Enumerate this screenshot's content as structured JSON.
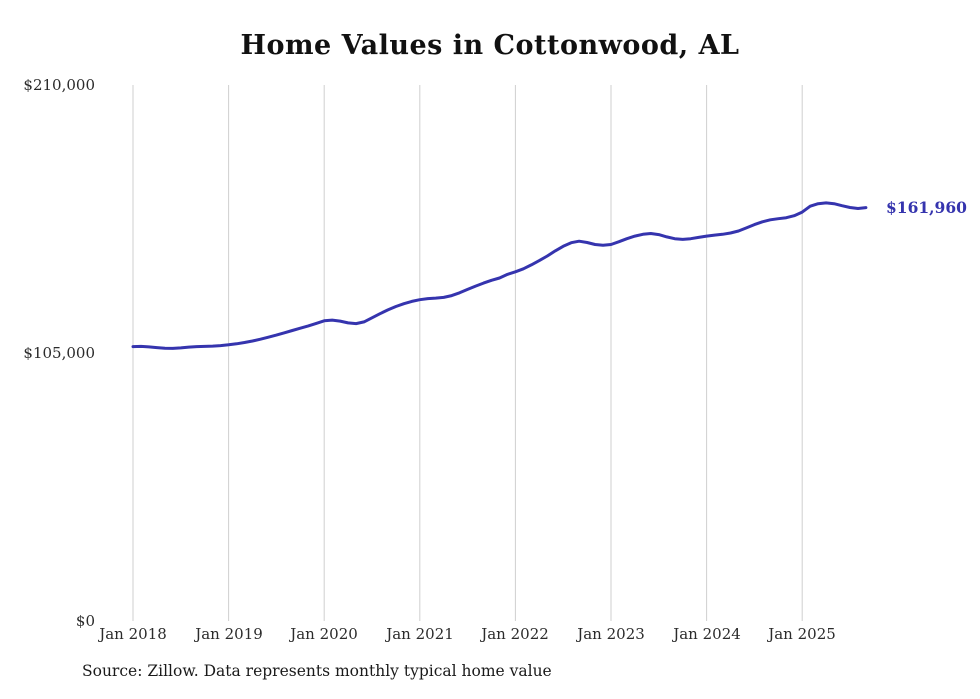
{
  "title": "Home Values in Cottonwood, AL",
  "source_note": "Source: Zillow. Data represents monthly typical home value",
  "end_label": "$161,960",
  "colors": {
    "line": "#3534ae",
    "end_label": "#3534ae",
    "grid": "#cfcfcf",
    "title": "#111111",
    "axis_text": "#2b2b2b"
  },
  "y_axis": {
    "labels": [
      "$210,000",
      "$105,000",
      "$0"
    ],
    "values": [
      210000,
      105000,
      0
    ]
  },
  "x_axis": {
    "labels": [
      "Jan 2018",
      "Jan 2019",
      "Jan 2020",
      "Jan 2021",
      "Jan 2022",
      "Jan 2023",
      "Jan 2024",
      "Jan 2025"
    ]
  },
  "chart_data": {
    "type": "line",
    "title": "Home Values in Cottonwood, AL",
    "xlabel": "",
    "ylabel": "",
    "ylim": [
      0,
      210000
    ],
    "y_tick_labels": [
      "$0",
      "$105,000",
      "$210,000"
    ],
    "x_tick_labels": [
      "Jan 2018",
      "Jan 2019",
      "Jan 2020",
      "Jan 2021",
      "Jan 2022",
      "Jan 2023",
      "Jan 2024",
      "Jan 2025"
    ],
    "x_range": {
      "start": "2018-01",
      "end": "2025-09",
      "interval": "monthly"
    },
    "grid": "vertical-only",
    "legend": "none",
    "end_value_label": "$161,960",
    "series": [
      {
        "name": "Typical home value",
        "values": [
          107500,
          107600,
          107400,
          107100,
          106900,
          106800,
          107000,
          107300,
          107500,
          107600,
          107700,
          107900,
          108200,
          108600,
          109100,
          109700,
          110400,
          111200,
          112000,
          112900,
          113800,
          114700,
          115600,
          116600,
          117600,
          117900,
          117500,
          116800,
          116500,
          117200,
          118800,
          120400,
          121900,
          123200,
          124300,
          125200,
          125900,
          126300,
          126500,
          126800,
          127500,
          128600,
          129900,
          131200,
          132400,
          133500,
          134400,
          135800,
          136800,
          138000,
          139500,
          141200,
          143000,
          145000,
          146800,
          148200,
          148800,
          148300,
          147500,
          147200,
          147500,
          148600,
          149800,
          150800,
          151500,
          151800,
          151400,
          150500,
          149800,
          149500,
          149800,
          150300,
          150800,
          151200,
          151500,
          152000,
          152800,
          154000,
          155300,
          156400,
          157200,
          157600,
          158000,
          158800,
          160200,
          162500,
          163500,
          163800,
          163500,
          162700,
          162000,
          161600,
          161960
        ]
      }
    ]
  }
}
